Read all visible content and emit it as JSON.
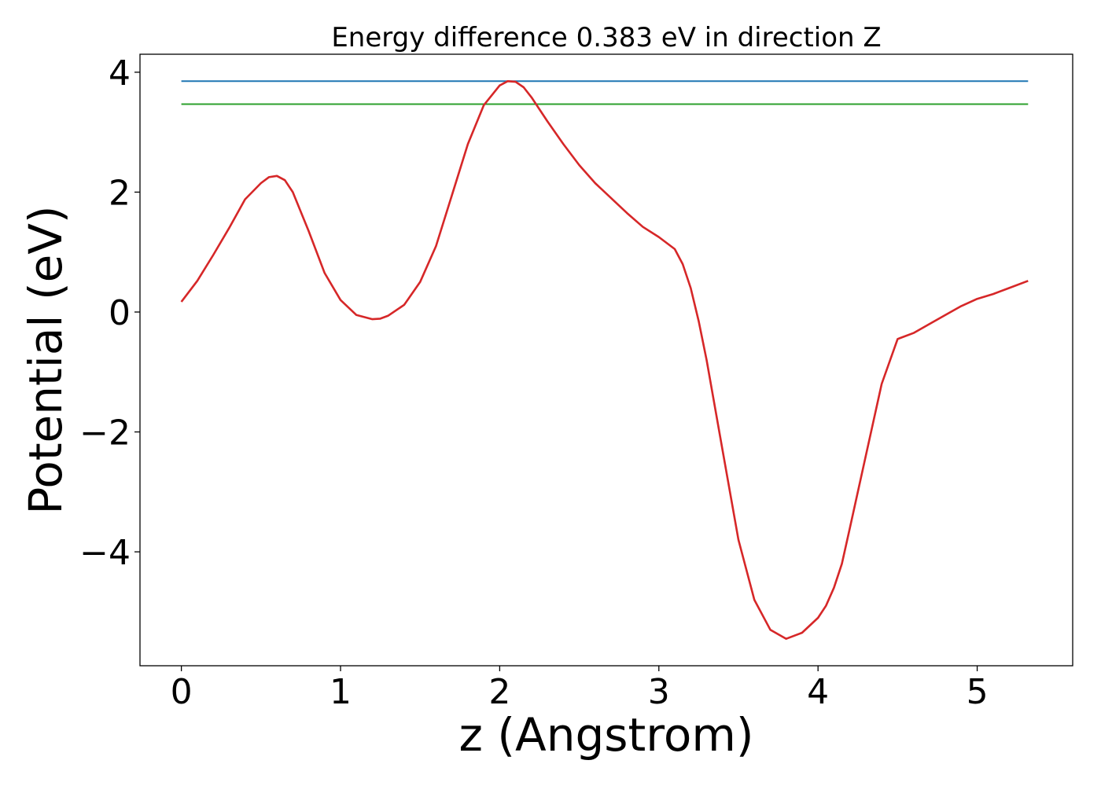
{
  "chart_data": {
    "type": "line",
    "title": "Energy difference 0.383 eV in direction Z",
    "xlabel": "z (Angstrom)",
    "ylabel": "Potential (eV)",
    "xlim": [
      -0.26,
      5.6
    ],
    "ylim": [
      -5.9,
      4.3
    ],
    "xticks": [
      0,
      1,
      2,
      3,
      4,
      5
    ],
    "xtick_labels": [
      "0",
      "1",
      "2",
      "3",
      "4",
      "5"
    ],
    "yticks": [
      -4,
      -2,
      0,
      2,
      4
    ],
    "ytick_labels": [
      "−4",
      "−2",
      "0",
      "2",
      "4"
    ],
    "grid": false,
    "series": [
      {
        "color": "#1f77b4",
        "x": [
          0,
          5.32
        ],
        "y": [
          3.85,
          3.85
        ]
      },
      {
        "color": "#2ca02c",
        "x": [
          0,
          5.32
        ],
        "y": [
          3.467,
          3.467
        ]
      },
      {
        "color": "#d62728",
        "x": [
          0,
          0.1,
          0.2,
          0.3,
          0.4,
          0.5,
          0.55,
          0.6,
          0.65,
          0.7,
          0.8,
          0.9,
          1.0,
          1.1,
          1.2,
          1.25,
          1.3,
          1.4,
          1.5,
          1.6,
          1.7,
          1.8,
          1.9,
          2.0,
          2.05,
          2.1,
          2.15,
          2.2,
          2.3,
          2.4,
          2.5,
          2.6,
          2.7,
          2.8,
          2.9,
          3.0,
          3.1,
          3.15,
          3.2,
          3.25,
          3.3,
          3.4,
          3.5,
          3.6,
          3.7,
          3.8,
          3.9,
          4.0,
          4.05,
          4.1,
          4.15,
          4.2,
          4.3,
          4.4,
          4.5,
          4.6,
          4.7,
          4.8,
          4.9,
          5.0,
          5.1,
          5.2,
          5.32
        ],
        "y": [
          0.17,
          0.52,
          0.95,
          1.4,
          1.88,
          2.15,
          2.25,
          2.27,
          2.2,
          2.0,
          1.35,
          0.65,
          0.2,
          -0.05,
          -0.12,
          -0.11,
          -0.06,
          0.12,
          0.5,
          1.1,
          1.95,
          2.8,
          3.45,
          3.78,
          3.85,
          3.84,
          3.75,
          3.58,
          3.18,
          2.8,
          2.45,
          2.15,
          1.9,
          1.65,
          1.42,
          1.25,
          1.05,
          0.8,
          0.4,
          -0.15,
          -0.8,
          -2.3,
          -3.8,
          -4.8,
          -5.3,
          -5.45,
          -5.35,
          -5.1,
          -4.9,
          -4.6,
          -4.2,
          -3.6,
          -2.4,
          -1.2,
          -0.45,
          -0.35,
          -0.2,
          -0.05,
          0.1,
          0.22,
          0.3,
          0.4,
          0.52
        ]
      }
    ]
  }
}
